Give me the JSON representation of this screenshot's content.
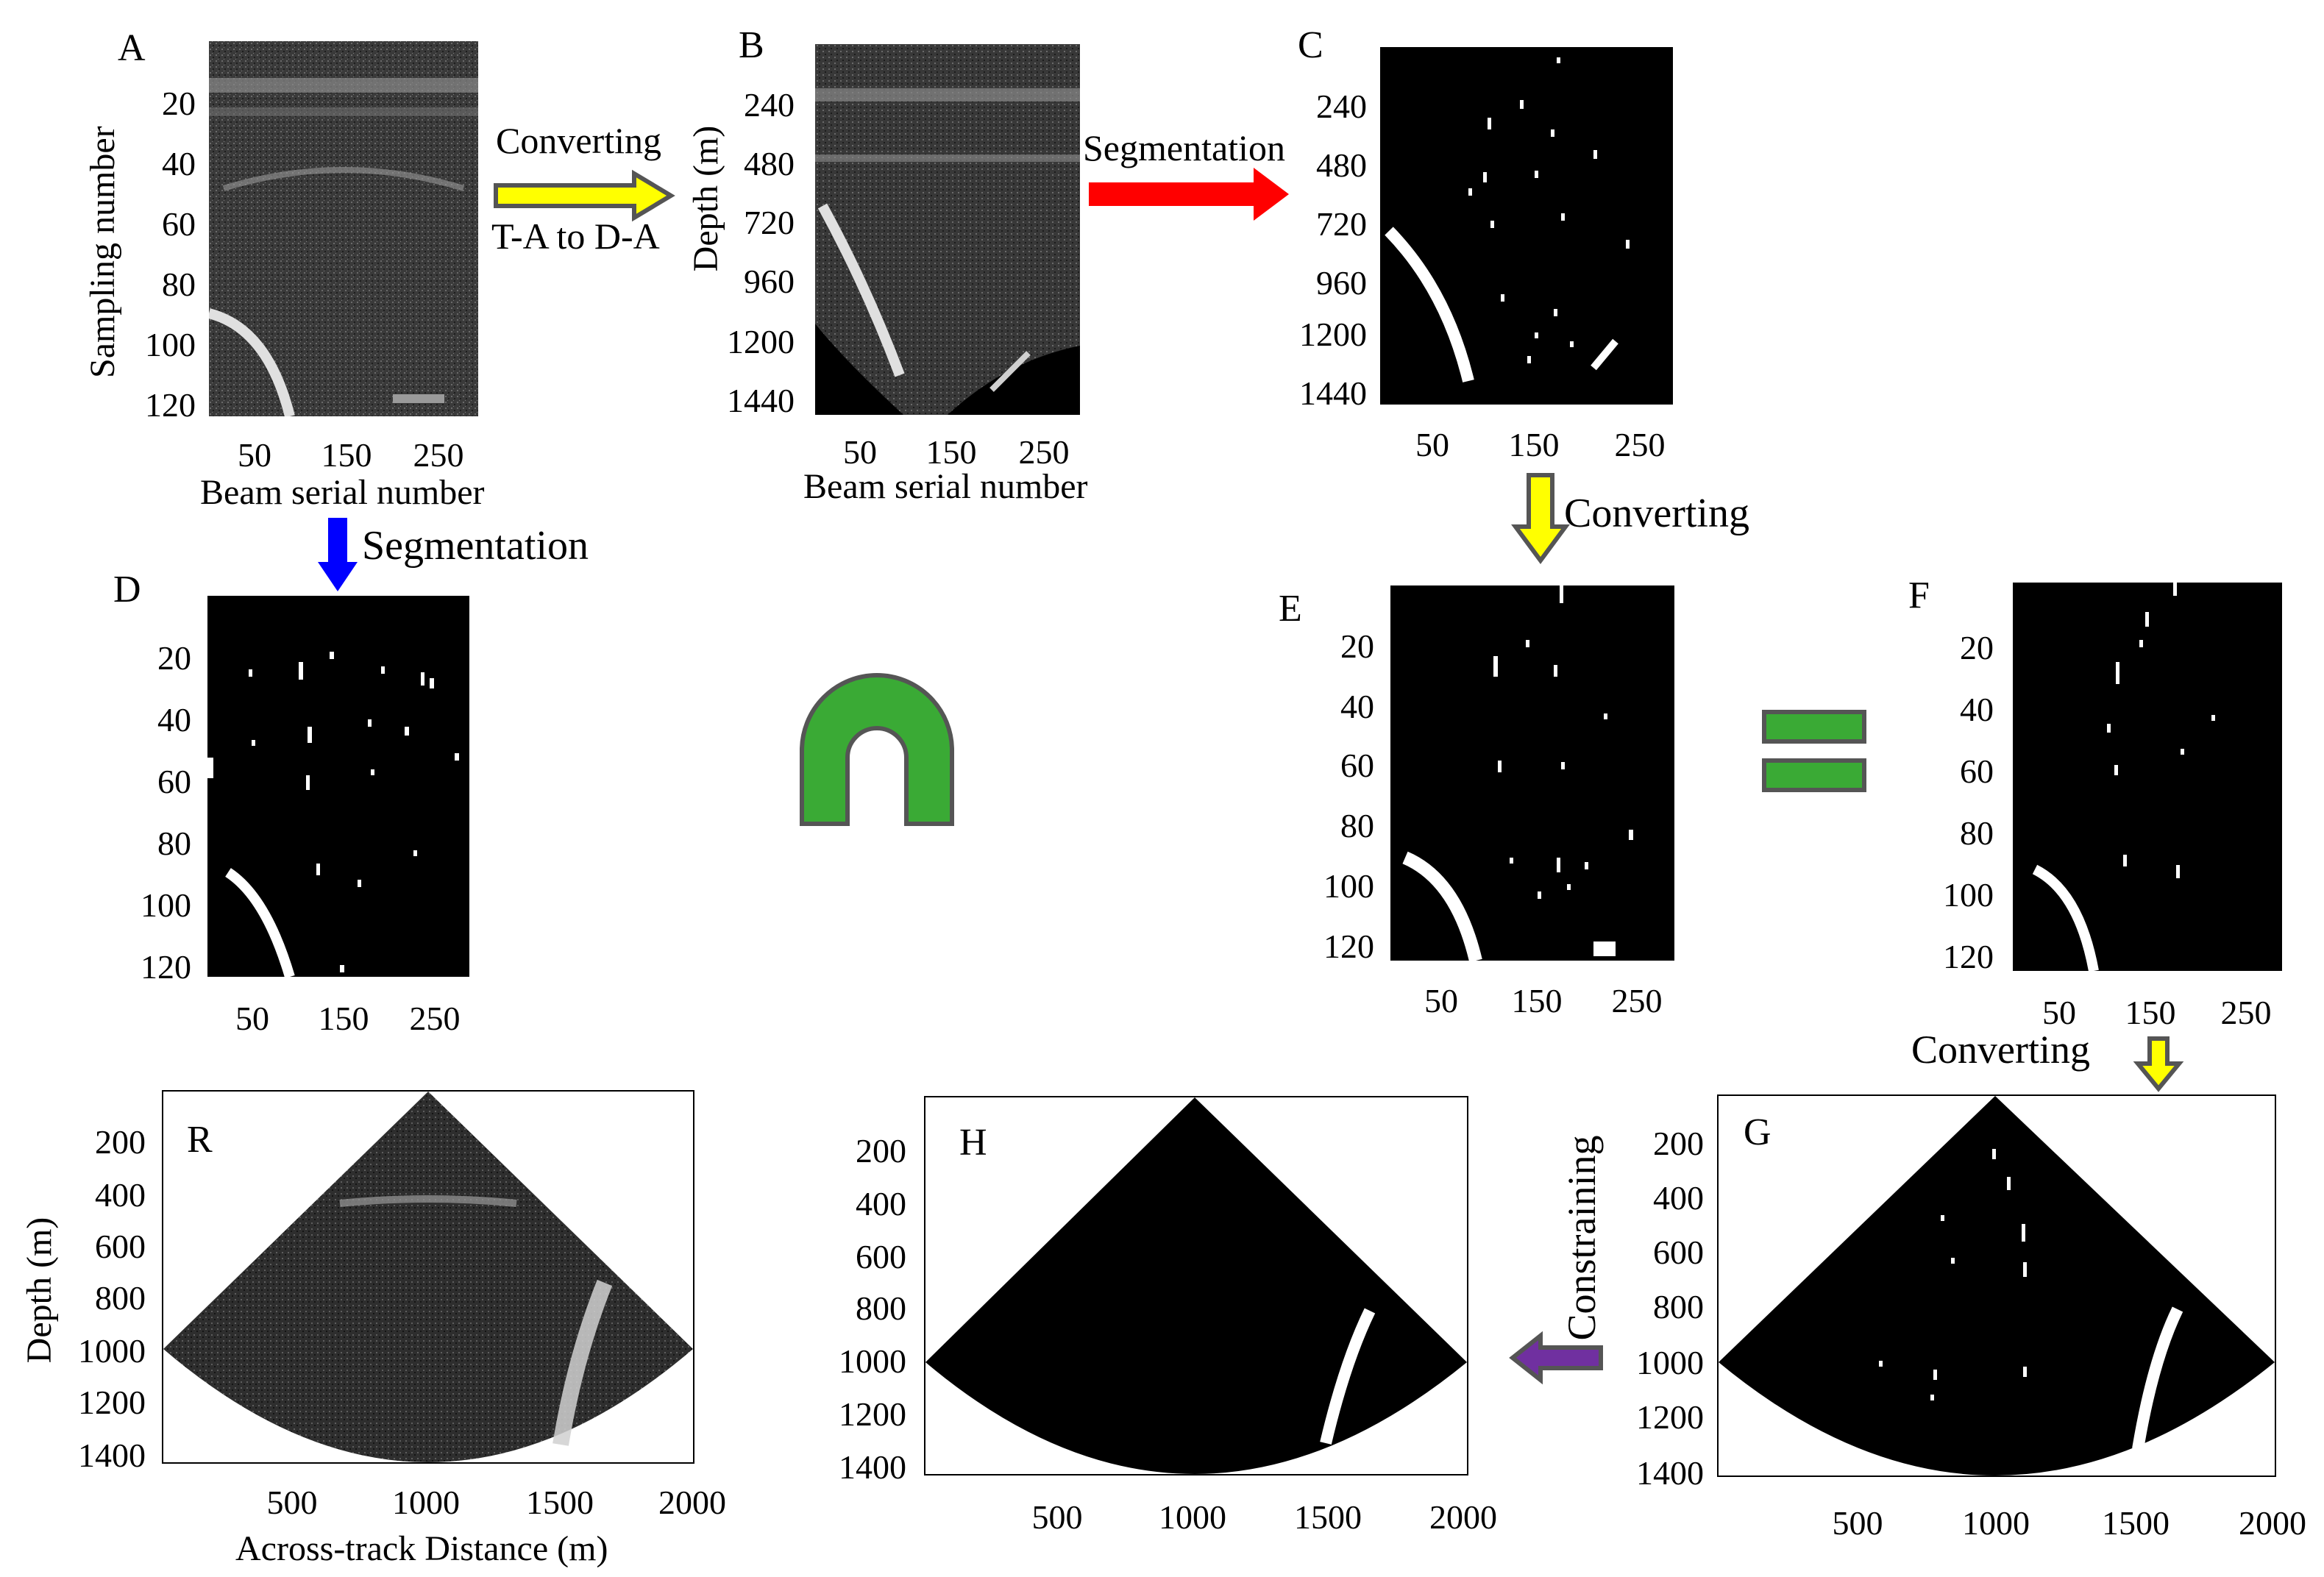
{
  "panels": {
    "A": {
      "letter": "A",
      "ylabel": "Sampling number",
      "xlabel": "Beam serial number",
      "yticks": [
        "20",
        "40",
        "60",
        "80",
        "100",
        "120"
      ],
      "xticks": [
        "50",
        "150",
        "250"
      ]
    },
    "B": {
      "letter": "B",
      "ylabel": "Depth (m)",
      "xlabel": "Beam serial number",
      "yticks": [
        "240",
        "480",
        "720",
        "960",
        "1200",
        "1440"
      ],
      "xticks": [
        "50",
        "150",
        "250"
      ]
    },
    "C": {
      "letter": "C",
      "yticks": [
        "240",
        "480",
        "720",
        "960",
        "1200",
        "1440"
      ],
      "xticks": [
        "50",
        "150",
        "250"
      ]
    },
    "D": {
      "letter": "D",
      "yticks": [
        "20",
        "40",
        "60",
        "80",
        "100",
        "120"
      ],
      "xticks": [
        "50",
        "150",
        "250"
      ]
    },
    "E": {
      "letter": "E",
      "yticks": [
        "20",
        "40",
        "60",
        "80",
        "100",
        "120"
      ],
      "xticks": [
        "50",
        "150",
        "250"
      ]
    },
    "F": {
      "letter": "F",
      "yticks": [
        "20",
        "40",
        "60",
        "80",
        "100",
        "120"
      ],
      "xticks": [
        "50",
        "150",
        "250"
      ]
    },
    "R": {
      "letter": "R",
      "ylabel": "Depth (m)",
      "xlabel": "Across-track Distance (m)",
      "yticks": [
        "200",
        "400",
        "600",
        "800",
        "1000",
        "1200",
        "1400"
      ],
      "xticks": [
        "500",
        "1000",
        "1500",
        "2000"
      ]
    },
    "H": {
      "letter": "H",
      "yticks": [
        "200",
        "400",
        "600",
        "800",
        "1000",
        "1200",
        "1400"
      ],
      "xticks": [
        "500",
        "1000",
        "1500",
        "2000"
      ]
    },
    "G": {
      "letter": "G",
      "yticks": [
        "200",
        "400",
        "600",
        "800",
        "1000",
        "1200",
        "1400"
      ],
      "xticks": [
        "500",
        "1000",
        "1500",
        "2000"
      ]
    }
  },
  "flows": {
    "a_to_b_top": "Converting",
    "a_to_b_bottom": "T-A to D-A",
    "b_to_c": "Segmentation",
    "a_to_d": "Segmentation",
    "c_to_e": "Converting",
    "f_to_g": "Converting",
    "g_to_h": "Constraining"
  },
  "colors": {
    "yellow_arrow": "#ffff00",
    "red_arrow": "#ff0000",
    "blue_arrow": "#0000ff",
    "purple_arrow": "#7030a0",
    "green_symbol": "#3aaa35",
    "outline": "#555555"
  },
  "symbols": {
    "intersection": "intersection-symbol",
    "equals": "equals-symbol"
  }
}
